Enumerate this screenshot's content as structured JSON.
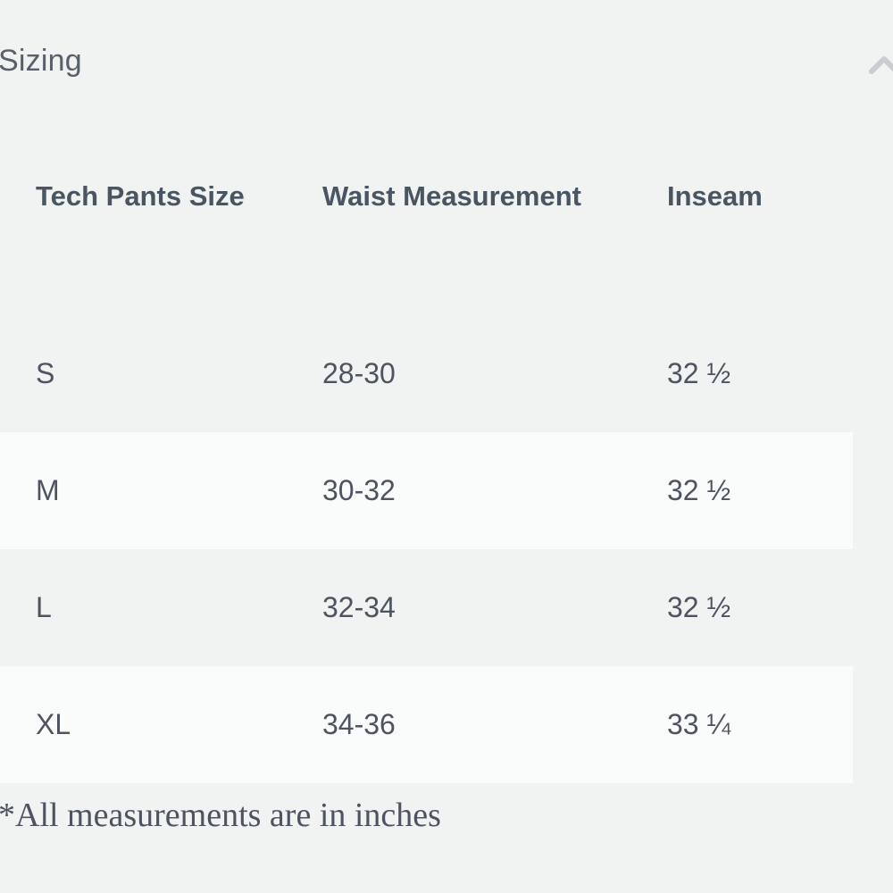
{
  "section": {
    "title": "Sizing",
    "toggle_icon": "chevron-up-icon"
  },
  "table": {
    "headers": [
      "Tech Pants Size",
      "Waist Measurement",
      "Inseam"
    ],
    "rows": [
      {
        "size": "S",
        "waist": "28-30",
        "inseam": "32 ½"
      },
      {
        "size": "M",
        "waist": "30-32",
        "inseam": "32 ½"
      },
      {
        "size": "L",
        "waist": "32-34",
        "inseam": "32 ½"
      },
      {
        "size": "XL",
        "waist": "34-36",
        "inseam": "33 ¼"
      }
    ]
  },
  "footnote": "*All measurements are in inches",
  "colors": {
    "background": "#f1f2f2",
    "alt_row": "#fafbfb",
    "text": "#4d5460",
    "icon": "#c9cdd1"
  }
}
